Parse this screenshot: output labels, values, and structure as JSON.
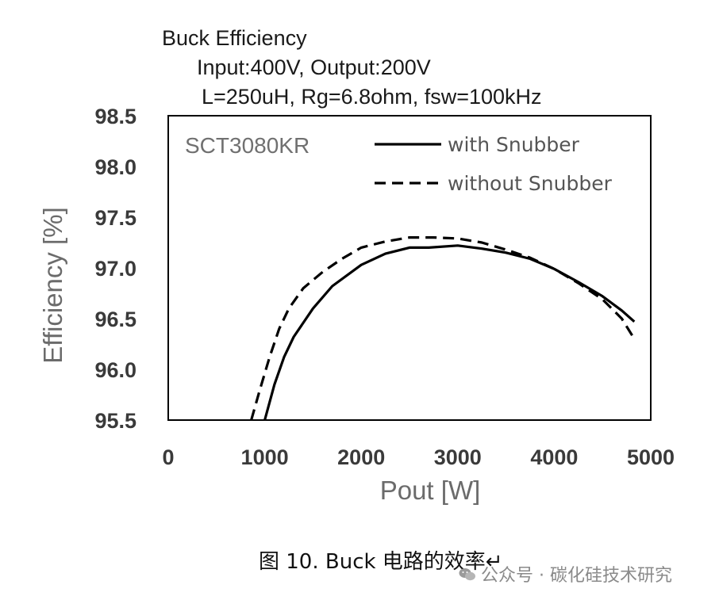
{
  "chart_data": {
    "type": "line",
    "title": [
      "Buck Efficiency",
      "Input:400V, Output:200V",
      "L=250uH, Rg=6.8ohm,  fsw=100kHz"
    ],
    "annotation": "SCT3080KR",
    "xlabel": "Pout [W]",
    "ylabel": "Efficiency  [%]",
    "xlim": [
      0,
      5000
    ],
    "ylim": [
      95.5,
      98.5
    ],
    "xticks": [
      "0",
      "1000",
      "2000",
      "3000",
      "4000",
      "5000"
    ],
    "yticks": [
      "98.5",
      "98.0",
      "97.5",
      "97.0",
      "96.5",
      "96.0",
      "95.5"
    ],
    "grid": false,
    "legend_position": "top-right",
    "series": [
      {
        "name": "with Snubber",
        "style": "solid",
        "color": "#000000",
        "x": [
          1000,
          1100,
          1200,
          1300,
          1500,
          1700,
          2000,
          2250,
          2500,
          2700,
          3000,
          3250,
          3500,
          3750,
          4000,
          4250,
          4500,
          4700,
          4830
        ],
        "y": [
          95.5,
          95.85,
          96.12,
          96.32,
          96.6,
          96.82,
          97.03,
          97.14,
          97.2,
          97.2,
          97.22,
          97.19,
          97.15,
          97.09,
          96.99,
          96.86,
          96.72,
          96.58,
          96.47
        ]
      },
      {
        "name": "without Snubber",
        "style": "dashed",
        "color": "#000000",
        "x": [
          860,
          950,
          1050,
          1150,
          1250,
          1400,
          1600,
          1800,
          2000,
          2250,
          2500,
          2750,
          3000,
          3250,
          3500,
          3750,
          4000,
          4250,
          4500,
          4700,
          4830
        ],
        "y": [
          95.5,
          95.8,
          96.12,
          96.4,
          96.6,
          96.8,
          96.96,
          97.09,
          97.2,
          97.26,
          97.3,
          97.3,
          97.29,
          97.25,
          97.18,
          97.1,
          96.99,
          96.85,
          96.69,
          96.5,
          96.3
        ]
      }
    ]
  },
  "caption": "图 10. Buck 电路的效率↵",
  "watermark": {
    "text": "公众号 · 碳化硅技术研究",
    "icon": "wechat-icon"
  }
}
